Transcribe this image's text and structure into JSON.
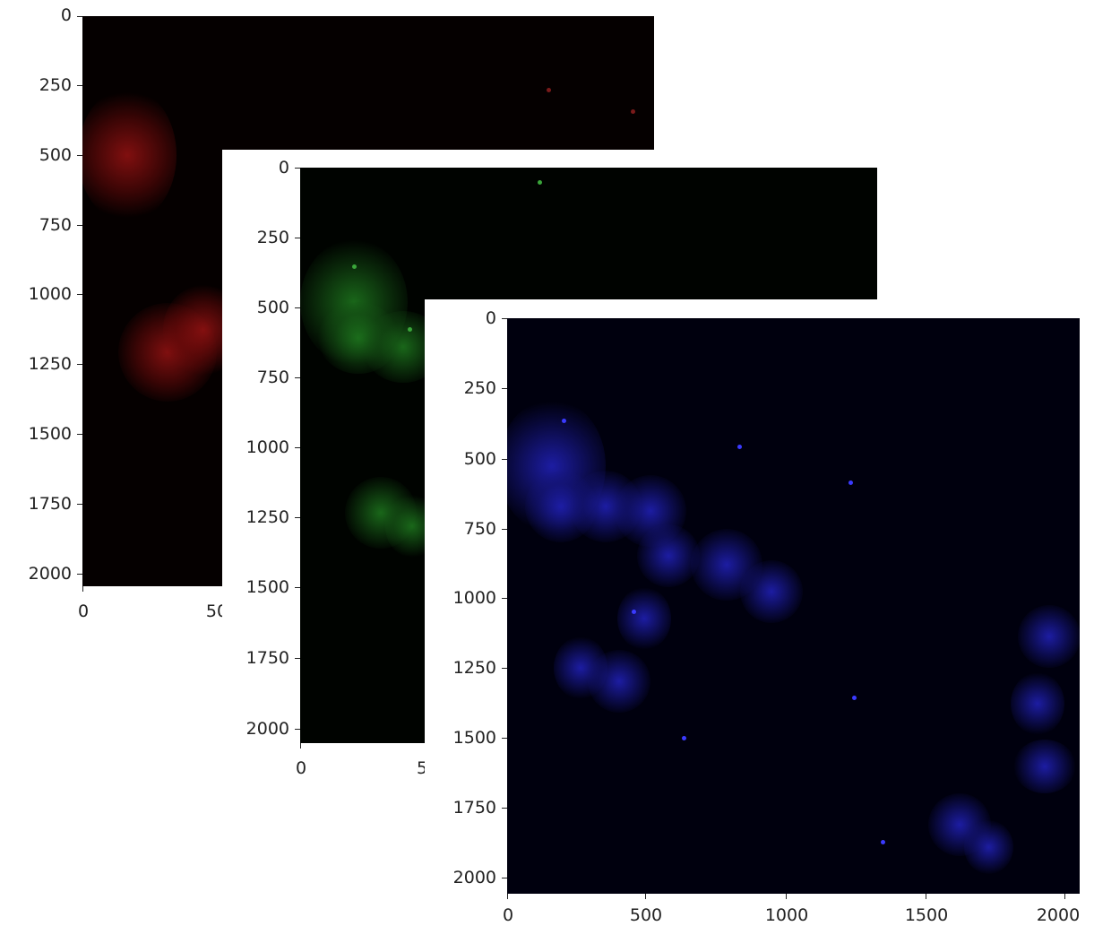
{
  "panels": {
    "red": {
      "y_ticks": [
        "0",
        "250",
        "500",
        "750",
        "1000",
        "1250",
        "1500",
        "1750",
        "2000"
      ],
      "x_ticks": [
        "0",
        "50"
      ]
    },
    "green": {
      "y_ticks": [
        "0",
        "250",
        "500",
        "750",
        "1000",
        "1250",
        "1500",
        "1750",
        "2000"
      ],
      "x_ticks": [
        "0",
        "5"
      ]
    },
    "blue": {
      "y_ticks": [
        "0",
        "250",
        "500",
        "750",
        "1000",
        "1250",
        "1500",
        "1750",
        "2000"
      ],
      "x_ticks": [
        "0",
        "500",
        "1000",
        "1500",
        "2000"
      ]
    }
  },
  "colors": {
    "red_channel": "#8c1414",
    "green_channel": "#1e781e",
    "blue_channel": "#1e1eaa"
  }
}
